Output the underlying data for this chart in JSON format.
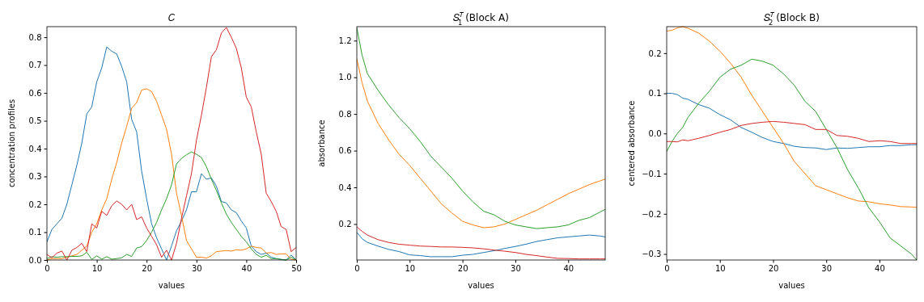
{
  "chart_data": [
    {
      "type": "line",
      "title": "𝐶",
      "xlabel": "values",
      "ylabel": "concentration profiles",
      "x": [
        0,
        1,
        2,
        3,
        4,
        5,
        6,
        7,
        8,
        9,
        10,
        11,
        12,
        13,
        14,
        15,
        16,
        17,
        18,
        19,
        20,
        21,
        22,
        23,
        24,
        25,
        26,
        27,
        28,
        29,
        30,
        31,
        32,
        33,
        34,
        35,
        36,
        37,
        38,
        39,
        40,
        41,
        42,
        43,
        44,
        45,
        46,
        47,
        48,
        49,
        50
      ],
      "xlim": [
        0,
        50
      ],
      "xticks": [
        0,
        10,
        20,
        30,
        40,
        50
      ],
      "ylim": [
        0,
        0.838
      ],
      "yticks": [
        {
          "value": 0,
          "label": "0.0"
        },
        0.1,
        0.2,
        0.3,
        0.4,
        0.5,
        0.6,
        0.7,
        0.8
      ],
      "series": [
        {
          "color": "#1f77b4",
          "values": [
            0.065,
            0.11,
            0.13,
            0.15,
            0.2,
            0.27,
            0.34,
            0.42,
            0.525,
            0.55,
            0.64,
            0.69,
            0.765,
            0.75,
            0.74,
            0.695,
            0.64,
            0.505,
            0.46,
            0.32,
            0.22,
            0.13,
            0.08,
            0.04,
            0.0,
            0.05,
            0.105,
            0.14,
            0.18,
            0.245,
            0.245,
            0.31,
            0.29,
            0.295,
            0.265,
            0.21,
            0.205,
            0.18,
            0.17,
            0.14,
            0.115,
            0.05,
            0.03,
            0.02,
            0.025,
            0.01,
            0.005,
            0.002,
            0.0,
            0.018,
            0.0
          ]
        },
        {
          "color": "#ff7f0e",
          "values": [
            0.0,
            0.005,
            0.005,
            0.005,
            0.01,
            0.015,
            0.02,
            0.035,
            0.05,
            0.1,
            0.13,
            0.18,
            0.22,
            0.29,
            0.35,
            0.42,
            0.48,
            0.545,
            0.565,
            0.61,
            0.615,
            0.605,
            0.57,
            0.52,
            0.47,
            0.38,
            0.24,
            0.16,
            0.07,
            0.04,
            0.01,
            0.01,
            0.007,
            0.015,
            0.03,
            0.032,
            0.034,
            0.032,
            0.037,
            0.035,
            0.04,
            0.05,
            0.045,
            0.043,
            0.025,
            0.027,
            0.02,
            0.022,
            0.022,
            0.002,
            0.0
          ]
        },
        {
          "color": "#2ca02c",
          "values": [
            0.005,
            0.012,
            0.01,
            0.012,
            0.012,
            0.013,
            0.013,
            0.015,
            0.028,
            0.002,
            0.015,
            0.003,
            0.012,
            0.003,
            0.005,
            0.008,
            0.02,
            0.013,
            0.043,
            0.048,
            0.07,
            0.1,
            0.135,
            0.18,
            0.22,
            0.27,
            0.345,
            0.365,
            0.378,
            0.388,
            0.38,
            0.368,
            0.335,
            0.29,
            0.25,
            0.205,
            0.165,
            0.135,
            0.11,
            0.085,
            0.065,
            0.04,
            0.02,
            0.01,
            0.017,
            0.005,
            0.005,
            0.002,
            0.0,
            0.01,
            0.0
          ]
        },
        {
          "color": "#d62728",
          "values": [
            0.02,
            0.008,
            0.025,
            0.032,
            0.0,
            0.035,
            0.045,
            0.06,
            0.03,
            0.13,
            0.115,
            0.175,
            0.16,
            0.195,
            0.212,
            0.2,
            0.18,
            0.2,
            0.145,
            0.155,
            0.115,
            0.085,
            0.055,
            0.01,
            0.035,
            0.0,
            0.06,
            0.15,
            0.23,
            0.31,
            0.43,
            0.52,
            0.62,
            0.73,
            0.755,
            0.815,
            0.835,
            0.8,
            0.76,
            0.69,
            0.585,
            0.55,
            0.46,
            0.38,
            0.24,
            0.21,
            0.175,
            0.12,
            0.11,
            0.03,
            0.045
          ]
        }
      ]
    },
    {
      "type": "line",
      "title": "𝑆$^{𝑇}$$_{1}$ (Block A)",
      "xlabel": "values",
      "ylabel": "absorbance",
      "x": [
        0,
        1,
        2,
        4,
        6,
        8,
        10,
        12,
        14,
        16,
        18,
        20,
        22,
        24,
        26,
        28,
        30,
        32,
        34,
        36,
        38,
        40,
        42,
        44,
        46,
        47
      ],
      "xlim": [
        0,
        47
      ],
      "xticks": [
        0,
        10,
        20,
        30,
        40
      ],
      "ylim": [
        0.004,
        1.276
      ],
      "yticks": [
        0.2,
        0.4,
        0.6,
        0.8,
        {
          "value": 1,
          "label": "1.0"
        },
        1.2
      ],
      "series": [
        {
          "color": "#1f77b4",
          "values": [
            0.155,
            0.12,
            0.1,
            0.08,
            0.062,
            0.05,
            0.032,
            0.028,
            0.022,
            0.022,
            0.022,
            0.03,
            0.035,
            0.045,
            0.055,
            0.067,
            0.078,
            0.09,
            0.105,
            0.115,
            0.125,
            0.13,
            0.135,
            0.14,
            0.135,
            0.13
          ]
        },
        {
          "color": "#ff7f0e",
          "values": [
            1.1,
            0.97,
            0.87,
            0.75,
            0.66,
            0.58,
            0.52,
            0.45,
            0.38,
            0.31,
            0.26,
            0.215,
            0.195,
            0.18,
            0.185,
            0.2,
            0.225,
            0.25,
            0.275,
            0.305,
            0.335,
            0.365,
            0.39,
            0.415,
            0.435,
            0.445
          ]
        },
        {
          "color": "#2ca02c",
          "values": [
            1.27,
            1.12,
            1.02,
            0.93,
            0.85,
            0.78,
            0.72,
            0.65,
            0.57,
            0.51,
            0.45,
            0.38,
            0.32,
            0.27,
            0.25,
            0.215,
            0.195,
            0.185,
            0.175,
            0.18,
            0.185,
            0.195,
            0.22,
            0.235,
            0.265,
            0.28
          ]
        },
        {
          "color": "#d62728",
          "values": [
            0.185,
            0.16,
            0.14,
            0.115,
            0.1,
            0.09,
            0.085,
            0.08,
            0.078,
            0.075,
            0.075,
            0.073,
            0.07,
            0.065,
            0.058,
            0.052,
            0.045,
            0.035,
            0.028,
            0.02,
            0.013,
            0.012,
            0.01,
            0.01,
            0.01,
            0.01
          ]
        }
      ]
    },
    {
      "type": "line",
      "title": "𝑆$^{𝑇}$$_{2}$ (Block B)",
      "xlabel": "values",
      "ylabel": "centered absorbance",
      "x": [
        0,
        1,
        2,
        3,
        4,
        6,
        8,
        10,
        12,
        14,
        16,
        18,
        20,
        22,
        24,
        26,
        28,
        30,
        32,
        34,
        36,
        38,
        40,
        42,
        44,
        46,
        47
      ],
      "xlim": [
        0,
        47
      ],
      "xticks": [
        0,
        10,
        20,
        30,
        40
      ],
      "ylim": [
        -0.315,
        0.266
      ],
      "yticks": [
        {
          "value": -0.3,
          "label": "−0.3"
        },
        {
          "value": -0.2,
          "label": "−0.2"
        },
        {
          "value": -0.1,
          "label": "−0.1"
        },
        {
          "value": 0,
          "label": "0.0"
        },
        0.1,
        0.2
      ],
      "series": [
        {
          "color": "#1f77b4",
          "values": [
            0.1,
            0.1,
            0.097,
            0.088,
            0.085,
            0.072,
            0.063,
            0.047,
            0.034,
            0.015,
            0.003,
            -0.01,
            -0.02,
            -0.025,
            -0.032,
            -0.035,
            -0.036,
            -0.04,
            -0.036,
            -0.037,
            -0.035,
            -0.033,
            -0.033,
            -0.03,
            -0.03,
            -0.028,
            -0.028
          ]
        },
        {
          "color": "#ff7f0e",
          "values": [
            0.255,
            0.257,
            0.263,
            0.266,
            0.262,
            0.25,
            0.23,
            0.205,
            0.175,
            0.14,
            0.095,
            0.055,
            0.015,
            -0.025,
            -0.07,
            -0.1,
            -0.13,
            -0.14,
            -0.15,
            -0.16,
            -0.168,
            -0.17,
            -0.175,
            -0.178,
            -0.182,
            -0.183,
            -0.184
          ]
        },
        {
          "color": "#2ca02c",
          "values": [
            -0.045,
            -0.02,
            0.0,
            0.015,
            0.04,
            0.075,
            0.105,
            0.14,
            0.16,
            0.17,
            0.185,
            0.18,
            0.17,
            0.148,
            0.12,
            0.08,
            0.055,
            0.01,
            -0.035,
            -0.09,
            -0.135,
            -0.185,
            -0.22,
            -0.26,
            -0.28,
            -0.3,
            -0.315
          ]
        },
        {
          "color": "#d62728",
          "values": [
            -0.02,
            -0.02,
            -0.021,
            -0.016,
            -0.018,
            -0.012,
            -0.005,
            0.003,
            0.01,
            0.02,
            0.025,
            0.028,
            0.03,
            0.028,
            0.025,
            0.022,
            0.01,
            0.01,
            -0.005,
            -0.007,
            -0.012,
            -0.02,
            -0.018,
            -0.02,
            -0.025,
            -0.025,
            -0.025
          ]
        }
      ]
    }
  ]
}
